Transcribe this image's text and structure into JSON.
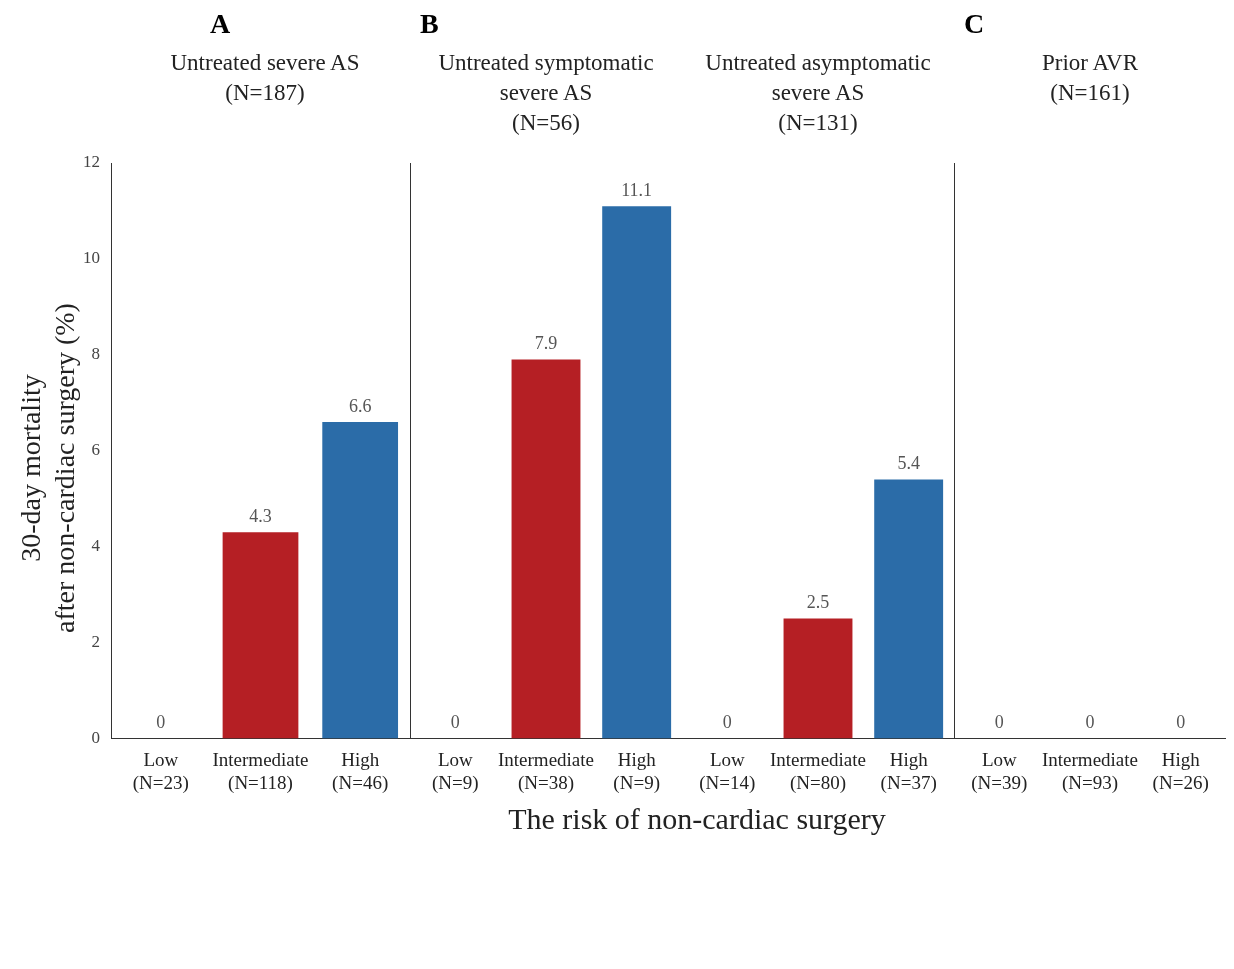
{
  "chart_data": [
    {
      "type": "bar",
      "title": "Untreated severe AS\n(N=187)",
      "annotations": [
        "A"
      ],
      "ylabel": "30-day mortality\nafter non-cardiac surgery (%)",
      "xlabel": "The risk of non-cardiac surgery",
      "categories": [
        "Low\n(N=23)",
        "Intermediate\n(N=118)",
        "High\n(N=46)"
      ],
      "values": [
        0,
        4.3,
        6.6
      ],
      "colors": [
        "#b51f24",
        "#b51f24",
        "#2b6ca8"
      ],
      "data_labels": true,
      "ylim": [
        0,
        12
      ],
      "yticks": [
        0,
        2,
        4,
        6,
        8,
        10,
        12
      ],
      "grid": false
    },
    {
      "type": "bar",
      "title": "Untreated symptomatic severe AS\n(N=56)",
      "annotations": [
        "B"
      ],
      "categories": [
        "Low\n(N=9)",
        "Intermediate\n(N=38)",
        "High\n(N=9)"
      ],
      "values": [
        0,
        7.9,
        11.1
      ],
      "colors": [
        "#b51f24",
        "#b51f24",
        "#2b6ca8"
      ],
      "data_labels": true,
      "ylim": [
        0,
        12
      ],
      "tick_labels": "x",
      "grid": false
    },
    {
      "type": "bar",
      "title": "Untreated asymptomatic severe AS\n(N=131)",
      "categories": [
        "Low\n(N=14)",
        "Intermediate\n(N=80)",
        "High\n(N=37)"
      ],
      "values": [
        0,
        2.5,
        5.4
      ],
      "colors": [
        "#b51f24",
        "#b51f24",
        "#2b6ca8"
      ],
      "data_labels": true,
      "ylim": [
        0,
        12
      ],
      "tick_labels": "x",
      "grid": false
    },
    {
      "type": "bar",
      "title": "Prior AVR\n(N=161)",
      "annotations": [
        "C"
      ],
      "categories": [
        "Low\n(N=39)",
        "Intermediate\n(N=93)",
        "High\n(N=26)"
      ],
      "values": [
        0,
        0,
        0
      ],
      "colors": [
        "#b51f24",
        "#b51f24",
        "#2b6ca8"
      ],
      "data_labels": true,
      "ylim": [
        0,
        12
      ],
      "tick_labels": "x",
      "grid": false
    }
  ]
}
